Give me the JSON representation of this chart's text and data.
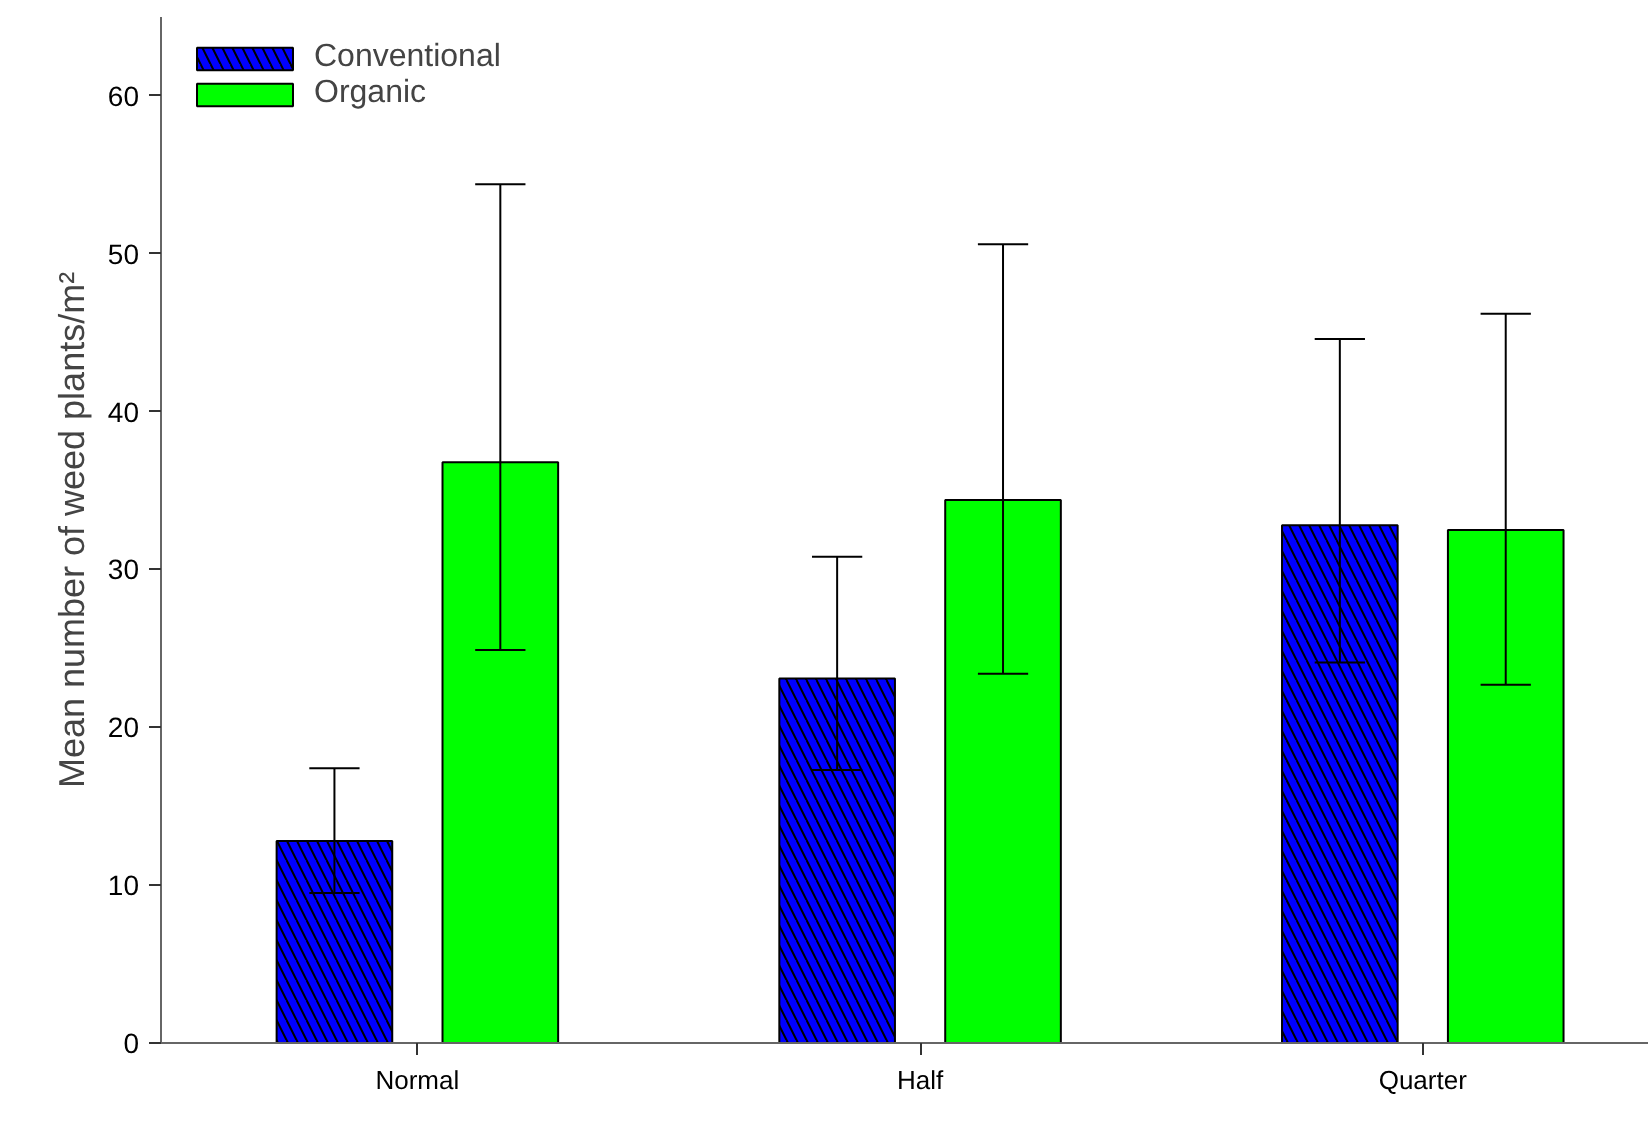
{
  "chart_data": {
    "type": "bar",
    "ylabel": "Mean number of weed plants/m²",
    "categories": [
      "Normal",
      "Half",
      "Quarter"
    ],
    "series": [
      {
        "name": "Conventional",
        "color": "#0000ff",
        "values": [
          12.8,
          23.1,
          32.8
        ],
        "errors": [
          [
            9.5,
            17.4
          ],
          [
            17.3,
            30.8
          ],
          [
            24.1,
            44.6
          ]
        ]
      },
      {
        "name": "Organic",
        "color": "#00ff00",
        "values": [
          36.8,
          34.4,
          32.5
        ],
        "errors": [
          [
            24.9,
            54.4
          ],
          [
            23.4,
            50.6
          ],
          [
            22.7,
            46.2
          ]
        ]
      }
    ],
    "ylim": [
      0,
      65
    ],
    "yticks": [
      0,
      10,
      20,
      30,
      40,
      50,
      60
    ],
    "grid": false,
    "legend": "top left"
  }
}
